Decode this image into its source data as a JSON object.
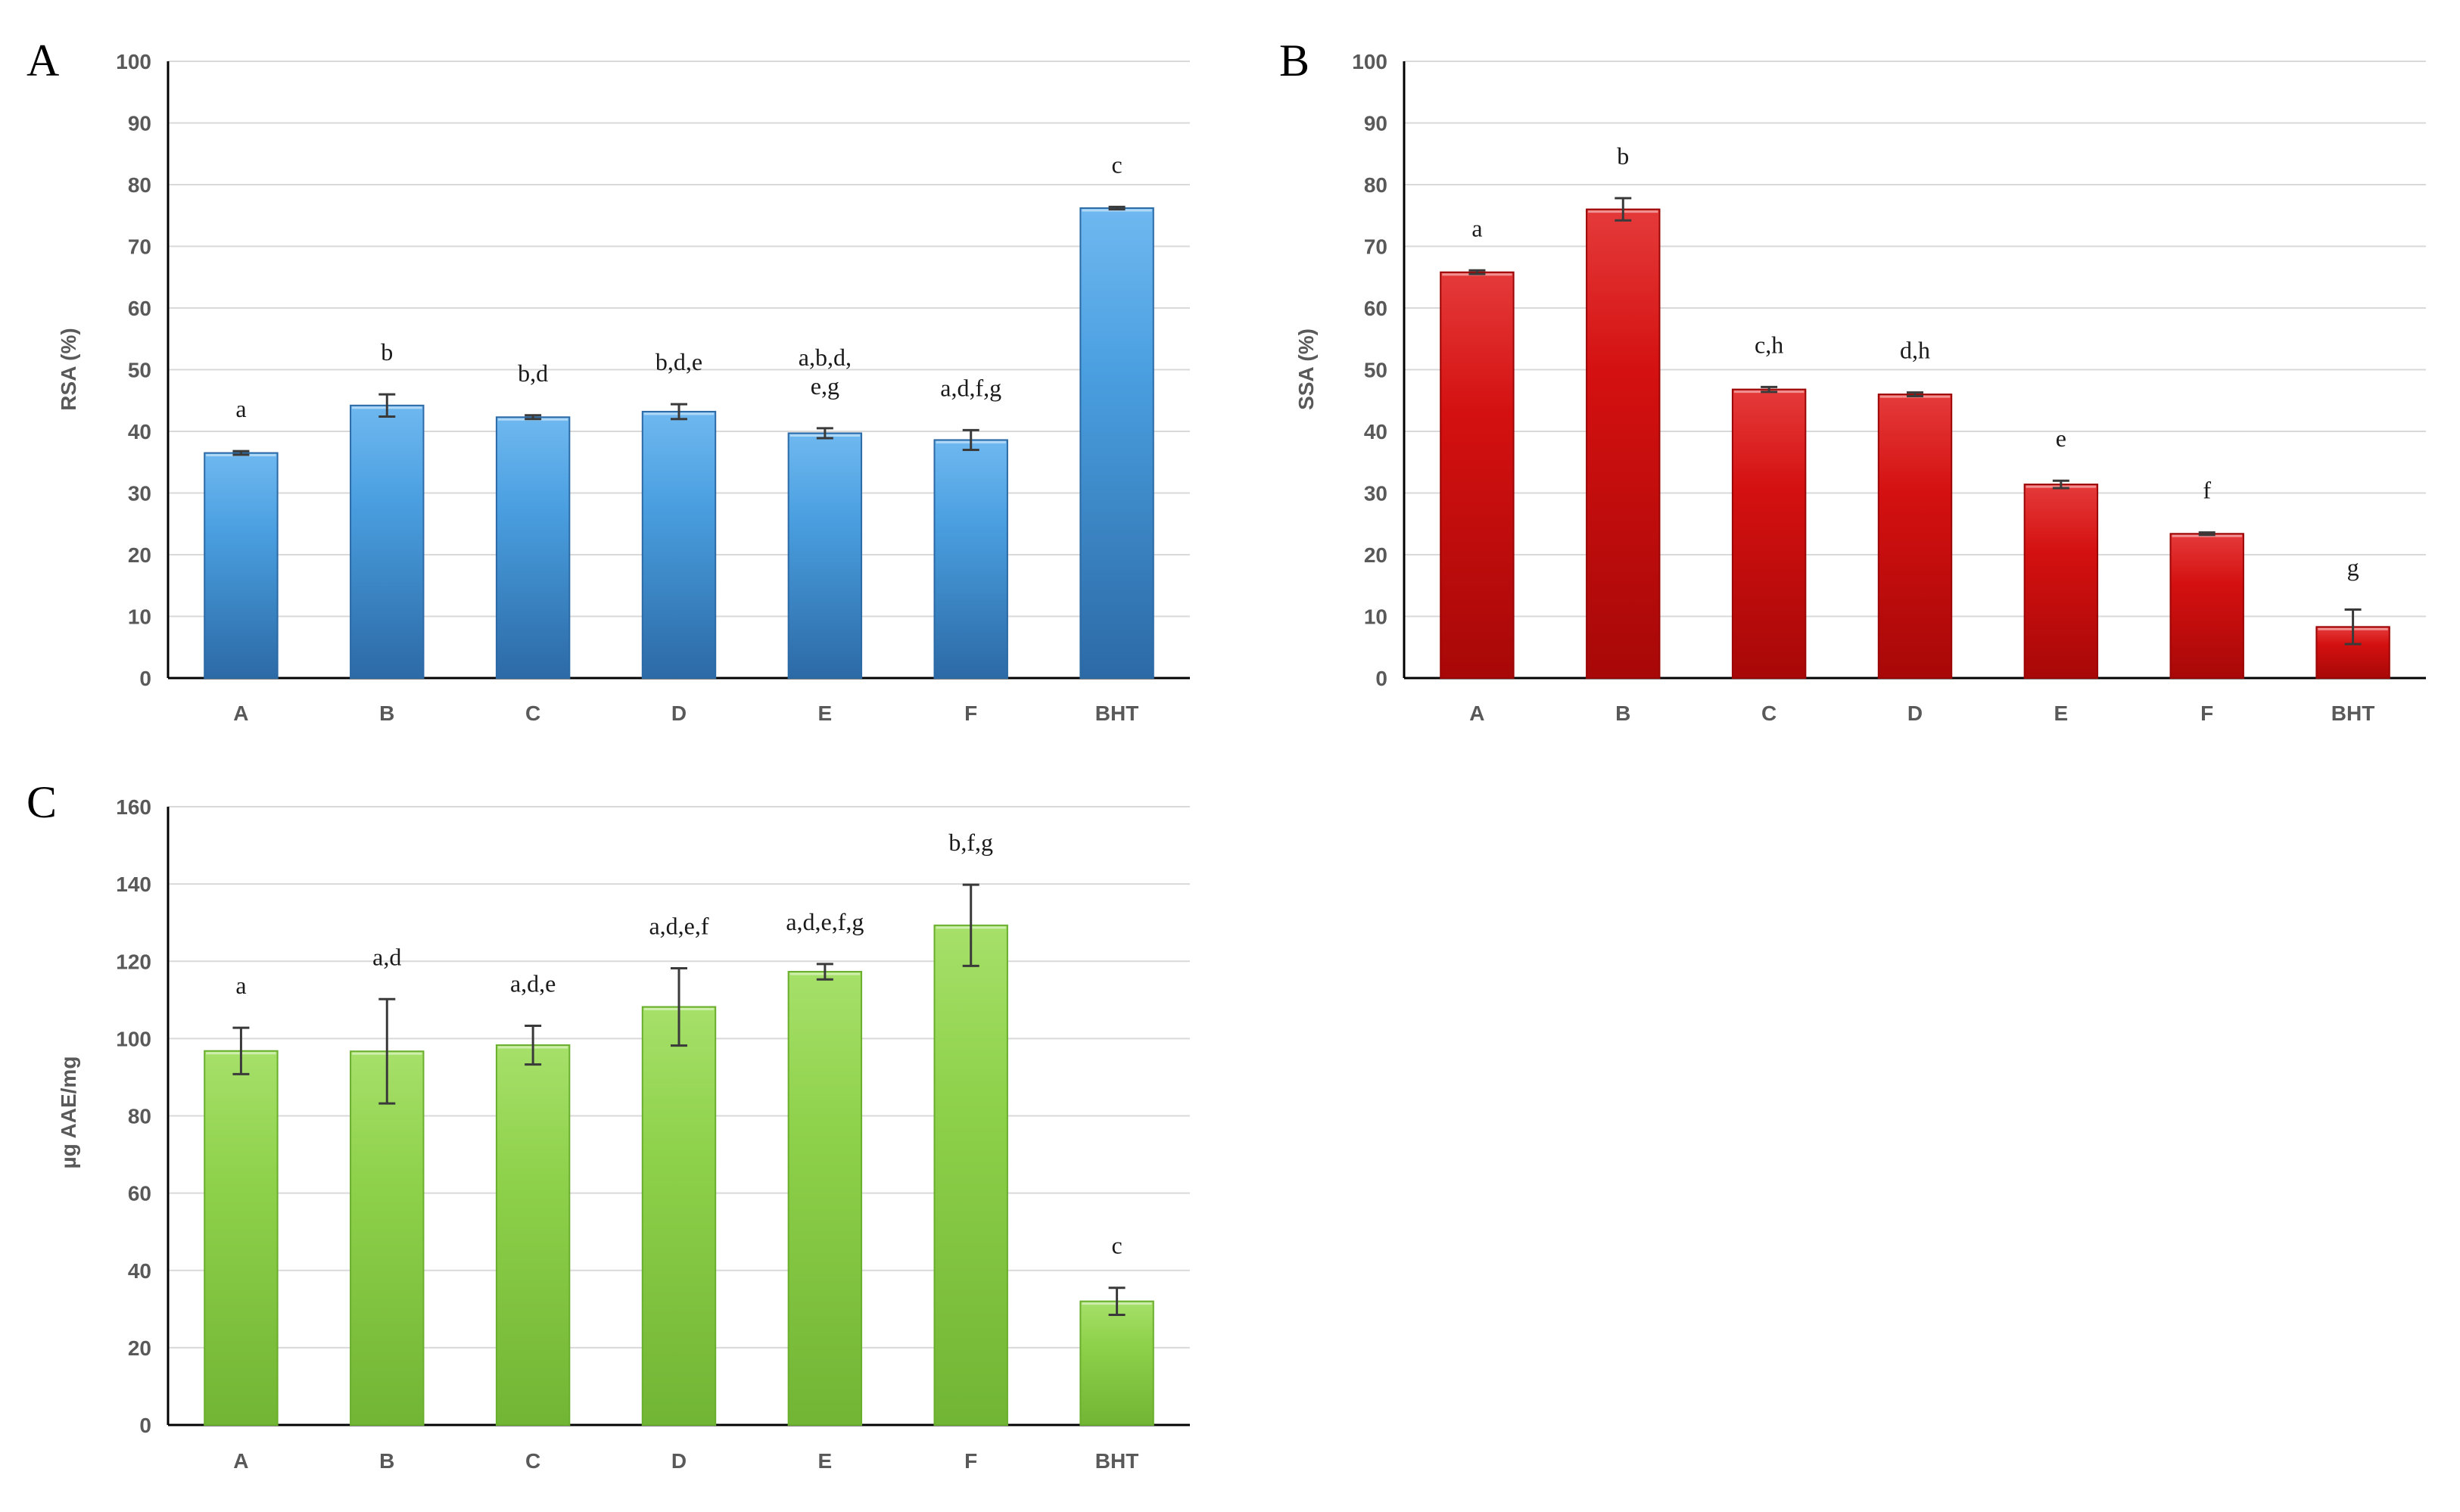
{
  "chart_data": [
    {
      "type": "bar",
      "panel": "A",
      "ylabel": "RSA (%)",
      "ylim": [
        0,
        100
      ],
      "yticks": [
        0,
        10,
        20,
        30,
        40,
        50,
        60,
        70,
        80,
        90,
        100
      ],
      "categories": [
        "A",
        "B",
        "C",
        "D",
        "E",
        "F",
        "BHT"
      ],
      "values": [
        36.5,
        44.2,
        42.3,
        43.2,
        39.7,
        38.6,
        76.2
      ],
      "errors": [
        0.3,
        1.8,
        0.3,
        1.2,
        0.8,
        1.6,
        0.2
      ],
      "significance": [
        [
          "a"
        ],
        [
          "b"
        ],
        [
          "b,d"
        ],
        [
          "b,d,e"
        ],
        [
          "a,b,d,",
          "e,g"
        ],
        [
          "a,d,f,g"
        ],
        [
          "c"
        ]
      ],
      "color": "#4a9fe0",
      "color_dark": "#2c6aa6"
    },
    {
      "type": "bar",
      "panel": "B",
      "ylabel": "SSA (%)",
      "ylim": [
        0,
        100
      ],
      "yticks": [
        0,
        10,
        20,
        30,
        40,
        50,
        60,
        70,
        80,
        90,
        100
      ],
      "categories": [
        "A",
        "B",
        "C",
        "D",
        "E",
        "F",
        "BHT"
      ],
      "values": [
        65.8,
        76.0,
        46.8,
        46.0,
        31.4,
        23.4,
        8.3
      ],
      "errors": [
        0.3,
        1.8,
        0.4,
        0.3,
        0.6,
        0.2,
        2.8
      ],
      "significance": [
        [
          "a"
        ],
        [
          "b"
        ],
        [
          "c,h"
        ],
        [
          "d,h"
        ],
        [
          "e"
        ],
        [
          "f"
        ],
        [
          "g"
        ]
      ],
      "color": "#d41010",
      "color_dark": "#9a0606"
    },
    {
      "type": "bar",
      "panel": "C",
      "ylabel": "µg AAE/mg",
      "ylim": [
        0,
        160
      ],
      "yticks": [
        0,
        20,
        40,
        60,
        80,
        100,
        120,
        140,
        160
      ],
      "categories": [
        "A",
        "B",
        "C",
        "D",
        "E",
        "F",
        "BHT"
      ],
      "values": [
        96.8,
        96.7,
        98.3,
        108.2,
        117.3,
        129.3,
        32.0
      ],
      "errors": [
        6.0,
        13.5,
        5.0,
        10.0,
        2.0,
        10.5,
        3.5
      ],
      "significance": [
        [
          "a"
        ],
        [
          "a,d"
        ],
        [
          "a,d,e"
        ],
        [
          "a,d,e,f"
        ],
        [
          "a,d,e,f,g"
        ],
        [
          "b,f,g"
        ],
        [
          "c"
        ]
      ],
      "color": "#8ed14a",
      "color_dark": "#6aae2e"
    }
  ]
}
